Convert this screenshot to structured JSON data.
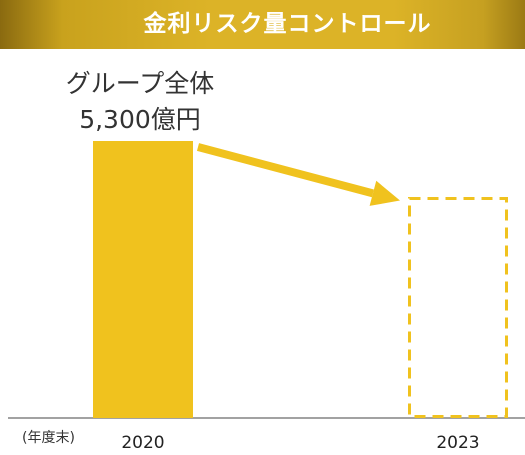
{
  "header": {
    "title": "金利リスク量コントロール"
  },
  "annotation": {
    "line1": "グループ全体",
    "line2": "5,300億円"
  },
  "axis_note": "(年度末)",
  "colors": {
    "accent": "#f0c21e",
    "dashed": "#f0c21e",
    "title_bg": "#dcb327"
  },
  "chart_data": {
    "type": "bar",
    "title": "金利リスク量コントロール",
    "categories": [
      "2020",
      "2023"
    ],
    "values": [
      5300,
      null
    ],
    "value_labels": [
      "5,300億円",
      ""
    ],
    "xlabel": "(年度末)",
    "ylabel": "",
    "ylim": [
      0,
      5300
    ],
    "target_styles": [
      "solid",
      "dashed"
    ],
    "target_values": [
      5300,
      4200
    ],
    "grid": false,
    "legend": "none"
  }
}
